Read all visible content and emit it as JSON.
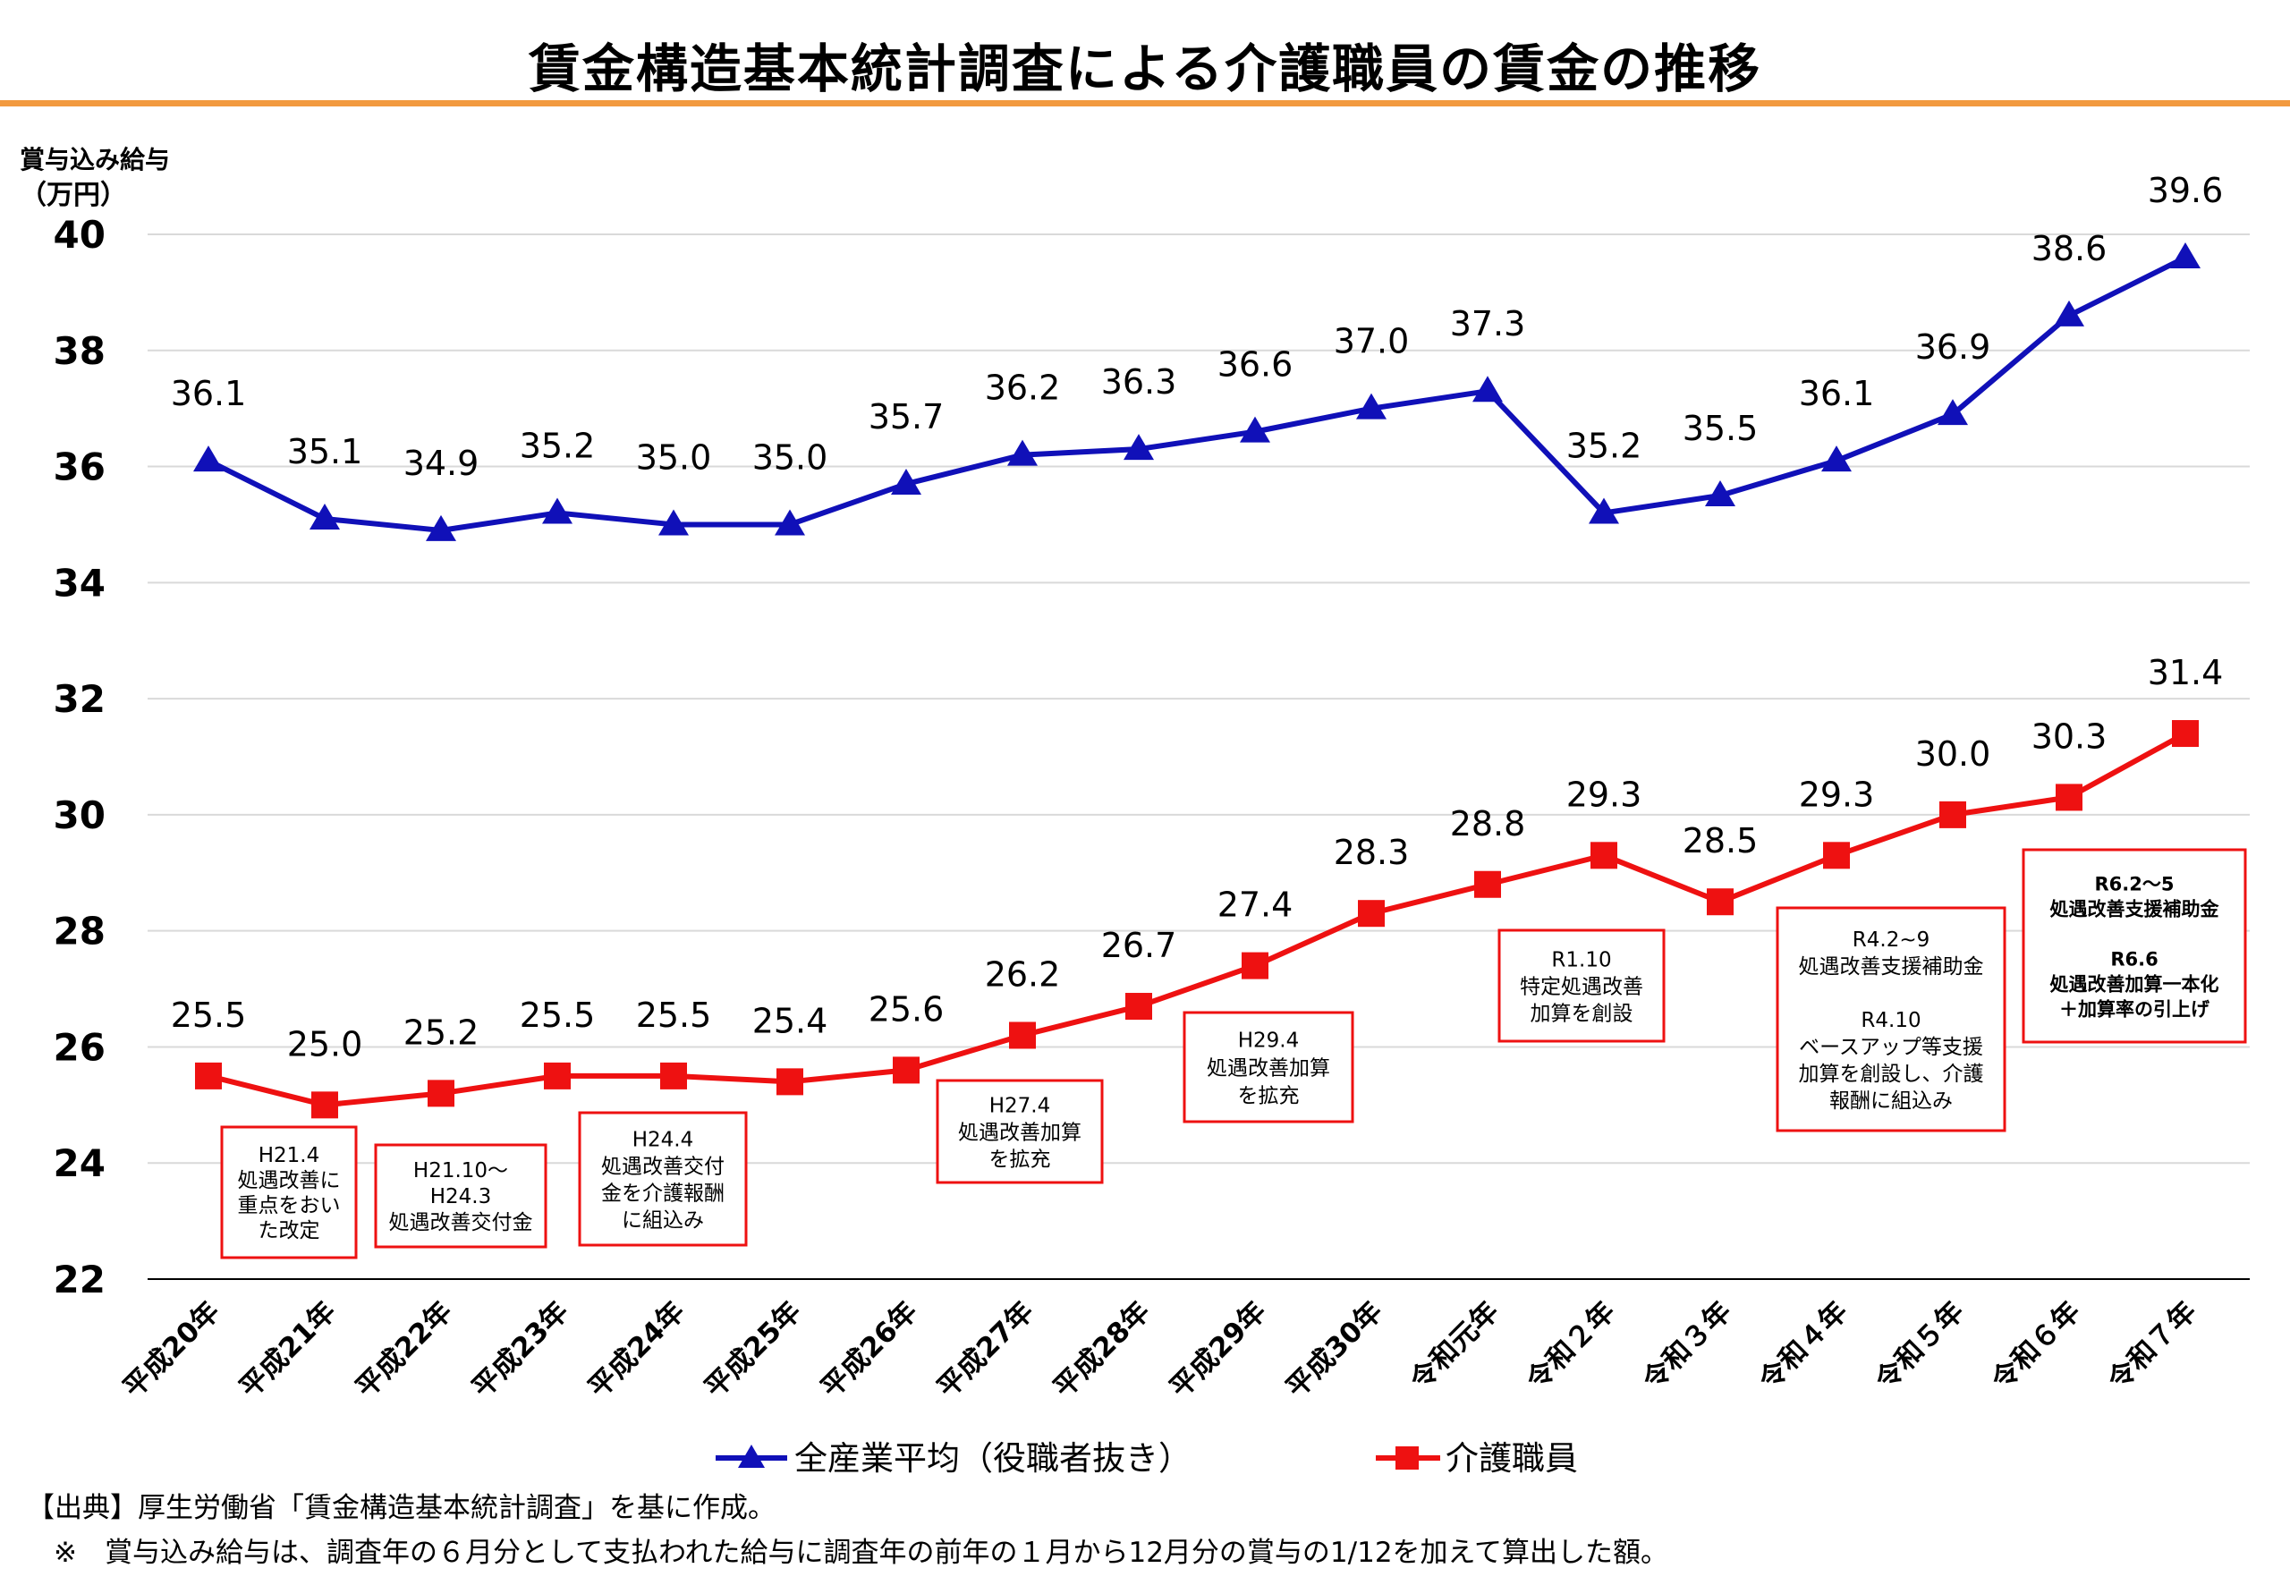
{
  "title": "賃金構造基本統計調査による介護職員の賃金の推移",
  "footnotes": {
    "source": "【出典】厚生労働省「賃金構造基本統計調査」を基に作成。",
    "note": "※　賞与込み給与は、調査年の６月分として支払われた給与に調査年の前年の１月から12月分の賞与の1/12を加えて算出した額。"
  },
  "colors": {
    "blue": "#1010b8",
    "red": "#ee1111",
    "accent_rule": "#f29a3f",
    "grid": "#d9d9d9"
  },
  "chart_data": {
    "type": "line",
    "title": "賃金構造基本統計調査による介護職員の賃金の推移",
    "ylabel_line1": "賞与込み給与",
    "ylabel_line2": "（万円）",
    "ylim": [
      22,
      40
    ],
    "yticks": [
      22,
      24,
      26,
      28,
      30,
      32,
      34,
      36,
      38,
      40
    ],
    "grid": true,
    "legend_position": "bottom",
    "categories": [
      "平成20年",
      "平成21年",
      "平成22年",
      "平成23年",
      "平成24年",
      "平成25年",
      "平成26年",
      "平成27年",
      "平成28年",
      "平成29年",
      "平成30年",
      "令和元年",
      "令和２年",
      "令和３年",
      "令和４年",
      "令和５年",
      "令和６年",
      "令和７年"
    ],
    "series": [
      {
        "name": "全産業平均（役職者抜き）",
        "marker": "triangle",
        "color": "#1010b8",
        "values": [
          36.1,
          35.1,
          34.9,
          35.2,
          35.0,
          35.0,
          35.7,
          36.2,
          36.3,
          36.6,
          37.0,
          37.3,
          35.2,
          35.5,
          36.1,
          36.9,
          38.6,
          39.6
        ]
      },
      {
        "name": "介護職員",
        "marker": "square",
        "color": "#ee1111",
        "values": [
          25.5,
          25.0,
          25.2,
          25.5,
          25.5,
          25.4,
          25.6,
          26.2,
          26.7,
          27.4,
          28.3,
          28.8,
          29.3,
          28.5,
          29.3,
          30.0,
          30.3,
          31.4
        ]
      }
    ],
    "annotations": [
      {
        "lines": [
          "H21.4",
          "処遇改善に",
          "重点をおい",
          "た改定"
        ],
        "bold": []
      },
      {
        "lines": [
          "H21.10～",
          "H24.3",
          "処遇改善交付金"
        ],
        "bold": []
      },
      {
        "lines": [
          "H24.4",
          "処遇改善交付",
          "金を介護報酬",
          "に組込み"
        ],
        "bold": []
      },
      {
        "lines": [
          "H27.4",
          "処遇改善加算",
          "を拡充"
        ],
        "bold": []
      },
      {
        "lines": [
          "H29.4",
          "処遇改善加算",
          "を拡充"
        ],
        "bold": []
      },
      {
        "lines": [
          "R1.10",
          "特定処遇改善",
          "加算を創設"
        ],
        "bold": []
      },
      {
        "lines": [
          "R4.2~9",
          "処遇改善支援補助金",
          "",
          "R4.10",
          "ベースアップ等支援",
          "加算を創設し、介護",
          "報酬に組込み"
        ],
        "bold": []
      },
      {
        "lines": [
          "R6.2～5",
          "処遇改善支援補助金",
          "",
          "R6.6",
          "処遇改善加算一本化",
          "＋加算率の引上げ"
        ],
        "bold": [
          0,
          1,
          2,
          3,
          4,
          5
        ]
      }
    ]
  }
}
